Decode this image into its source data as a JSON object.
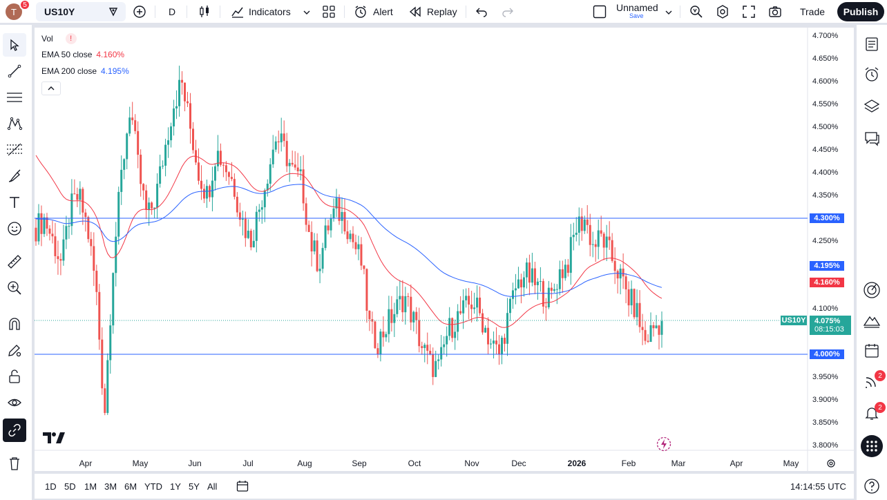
{
  "topbar": {
    "avatar_letter": "T",
    "avatar_badge": "5",
    "symbol": "US10Y",
    "interval": "D",
    "indicators_label": "Indicators",
    "alert_label": "Alert",
    "replay_label": "Replay",
    "layout_name": "Unnamed",
    "layout_save": "Save",
    "trade_label": "Trade",
    "publish_label": "Publish"
  },
  "legend": {
    "vol_label": "Vol",
    "vol_warning": "!",
    "ema50_label": "EMA 50 close",
    "ema50_value": "4.160%",
    "ema200_label": "EMA 200 close",
    "ema200_value": "4.195%"
  },
  "price_axis": {
    "ticks": [
      "4.700%",
      "4.650%",
      "4.600%",
      "4.550%",
      "4.500%",
      "4.450%",
      "4.400%",
      "4.350%",
      "4.250%",
      "4.100%",
      "3.950%",
      "3.900%",
      "3.850%",
      "3.800%"
    ],
    "tag_4300": "4.300%",
    "tag_ema200": "4.195%",
    "tag_ema50": "4.160%",
    "tag_symbol": "US10Y",
    "tag_last": "4.075%",
    "tag_countdown": "08:15:03",
    "tag_4000": "4.000%"
  },
  "time_axis": {
    "labels": [
      "Apr",
      "May",
      "Jun",
      "Jul",
      "Aug",
      "Sep",
      "Oct",
      "Nov",
      "Dec",
      "2026",
      "Feb",
      "Mar",
      "Apr",
      "May"
    ]
  },
  "bottombar": {
    "ranges": [
      "1D",
      "5D",
      "1M",
      "3M",
      "6M",
      "YTD",
      "1Y",
      "5Y",
      "All"
    ],
    "clock": "14:14:55 UTC"
  },
  "rightbar": {
    "badge_ideas": "2",
    "badge_alerts": "2"
  },
  "colors": {
    "up": "#26a69a",
    "down": "#ef5350",
    "ema50": "#f23645",
    "ema200": "#2962ff",
    "hline": "#2962ff"
  },
  "chart_data": {
    "type": "candlestick",
    "symbol": "US10Y",
    "timeframe": "D",
    "x_labels": [
      "Apr",
      "May",
      "Jun",
      "Jul",
      "Aug",
      "Sep",
      "Oct",
      "Nov",
      "Dec",
      "2026",
      "Feb",
      "Mar",
      "Apr",
      "May"
    ],
    "ylim": [
      3.78,
      4.72
    ],
    "y_unit": "%",
    "horizontal_lines": [
      4.3,
      4.0
    ],
    "last_price": 4.075,
    "series": [
      {
        "name": "EMA 50 close",
        "last": 4.16
      },
      {
        "name": "EMA 200 close",
        "last": 4.195
      }
    ],
    "approx_close_path": [
      4.28,
      4.3,
      4.25,
      4.2,
      4.32,
      4.35,
      4.28,
      4.15,
      3.87,
      4.2,
      4.4,
      4.55,
      4.4,
      4.3,
      4.35,
      4.45,
      4.55,
      4.6,
      4.5,
      4.4,
      4.35,
      4.45,
      4.42,
      4.38,
      4.3,
      4.25,
      4.32,
      4.4,
      4.48,
      4.45,
      4.4,
      4.38,
      4.25,
      4.2,
      4.28,
      4.32,
      4.3,
      4.25,
      4.2,
      4.05,
      4.03,
      4.07,
      4.1,
      4.13,
      4.08,
      4.02,
      3.98,
      3.97,
      4.05,
      4.08,
      4.1,
      4.12,
      4.08,
      4.03,
      4.0,
      4.08,
      4.15,
      4.18,
      4.16,
      4.14,
      4.12,
      4.18,
      4.2,
      4.28,
      4.3,
      4.24,
      4.26,
      4.22,
      4.18,
      4.13,
      4.1,
      4.03,
      4.06,
      4.075
    ]
  }
}
